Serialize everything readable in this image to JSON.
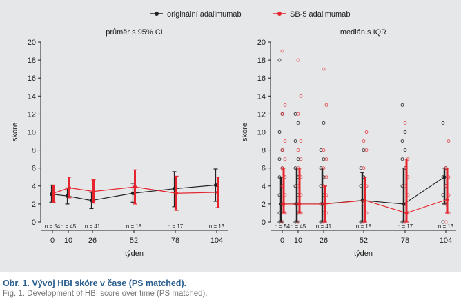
{
  "colors": {
    "original": "#222222",
    "sb5": "#e5242d",
    "background": "#e6e7e8",
    "caption_title": "#2b5f8f",
    "caption_sub": "#777777"
  },
  "legend": [
    {
      "label": "originální adalimumab",
      "color": "#222222"
    },
    {
      "label": "SB-5 adalimumab",
      "color": "#e5242d"
    }
  ],
  "caption": {
    "title": "Obr. 1. Vývoj HBI skóre v čase (PS matched).",
    "subtitle": "Fig. 1. Development of HBI score over time (PS matched)."
  },
  "chart_data": [
    {
      "type": "line",
      "title": "průměr s 95% CI",
      "xlabel": "týden",
      "ylabel": "skóre",
      "ylim": [
        0,
        20
      ],
      "yticks": [
        0,
        2,
        4,
        6,
        8,
        10,
        12,
        14,
        16,
        18,
        20
      ],
      "xticks": [
        0,
        10,
        26,
        52,
        78,
        104
      ],
      "n_labels": [
        "n = 54",
        "n = 45",
        "n = 41",
        "n = 18",
        "n = 17",
        "n = 13"
      ],
      "n_positions": [
        0,
        10,
        26,
        52,
        78,
        104
      ],
      "series": [
        {
          "name": "originální adalimumab",
          "x": [
            0,
            10,
            26,
            52,
            78,
            104
          ],
          "y": [
            3.1,
            2.9,
            2.4,
            3.2,
            3.7,
            4.1
          ],
          "lower": [
            2.2,
            2.0,
            1.5,
            2.2,
            1.7,
            2.3
          ],
          "upper": [
            4.1,
            3.8,
            3.3,
            4.3,
            5.6,
            5.9
          ]
        },
        {
          "name": "SB-5 adalimumab",
          "x": [
            0,
            10,
            26,
            52,
            78,
            104
          ],
          "y": [
            3.2,
            3.8,
            3.4,
            3.9,
            3.2,
            3.3
          ],
          "lower": [
            2.2,
            2.7,
            2.1,
            2.0,
            1.3,
            1.6
          ],
          "upper": [
            4.1,
            5.0,
            4.7,
            5.8,
            5.1,
            5.0
          ]
        }
      ]
    },
    {
      "type": "scatter",
      "title": "medián s IQR",
      "xlabel": "týden",
      "ylabel": "skóre",
      "ylim": [
        0,
        20
      ],
      "yticks": [
        0,
        2,
        4,
        6,
        8,
        10,
        12,
        14,
        16,
        18,
        20
      ],
      "xticks": [
        0,
        10,
        26,
        52,
        78,
        104
      ],
      "n_labels": [
        "n = 54",
        "n = 45",
        "n = 41",
        "n = 18",
        "n = 17",
        "n = 13"
      ],
      "n_positions": [
        0,
        10,
        26,
        52,
        78,
        104
      ],
      "series": [
        {
          "name": "originální adalimumab",
          "x": [
            0,
            10,
            26,
            52,
            78,
            104
          ],
          "median": [
            2,
            2,
            2,
            2.4,
            2,
            5
          ],
          "q1": [
            0,
            0,
            0,
            0,
            0,
            2
          ],
          "q3": [
            5,
            6,
            6,
            5.5,
            6,
            6
          ],
          "points": [
            [
              0,
              0,
              1,
              2,
              3,
              4,
              5,
              6,
              7,
              8,
              10,
              12,
              18
            ],
            [
              0,
              1,
              2,
              3,
              4,
              5,
              6,
              7,
              9,
              11,
              12
            ],
            [
              0,
              1,
              2,
              3,
              4,
              5,
              6,
              7,
              8,
              11
            ],
            [
              0,
              2,
              4,
              5,
              6,
              8
            ],
            [
              0,
              2,
              4,
              6,
              7,
              8,
              9,
              10,
              13
            ],
            [
              0,
              2,
              3,
              4,
              5,
              6,
              11
            ]
          ]
        },
        {
          "name": "SB-5 adalimumab",
          "x": [
            0,
            10,
            26,
            52,
            78,
            104
          ],
          "median": [
            2,
            2,
            2,
            2.4,
            1,
            2.5
          ],
          "q1": [
            1,
            1,
            0,
            0,
            0,
            1
          ],
          "q3": [
            6,
            6,
            4,
            5,
            7,
            6
          ],
          "points": [
            [
              0,
              1,
              2,
              3,
              4,
              5,
              6,
              7,
              8,
              9,
              12,
              13,
              19
            ],
            [
              0,
              1,
              2,
              3,
              4,
              5,
              6,
              7,
              8,
              9,
              12,
              14,
              18
            ],
            [
              0,
              1,
              2,
              3,
              4,
              5,
              6,
              7,
              8,
              13,
              17
            ],
            [
              0,
              1,
              2,
              4,
              6,
              8,
              9,
              10
            ],
            [
              0,
              1,
              2,
              3,
              4,
              5,
              6,
              7,
              11
            ],
            [
              0,
              1,
              2,
              3,
              4,
              5,
              6,
              9
            ]
          ]
        }
      ]
    }
  ]
}
